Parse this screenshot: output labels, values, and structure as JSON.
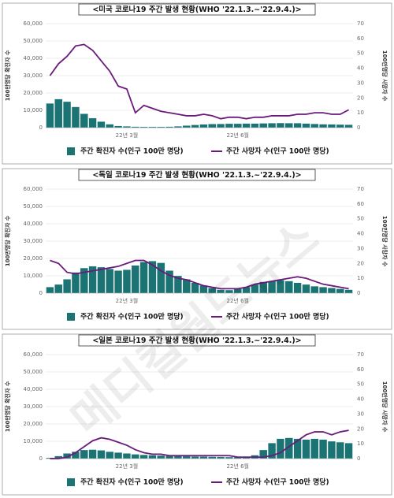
{
  "watermark": "메디컬월드뉴스",
  "chart_data": [
    {
      "type": "bar-line",
      "title": "<미국 코로나19 주간 발생 현황(WHO '22.1.3.~'22.9.4.)>",
      "y_label": "100만명당 확진자 수",
      "y2_label": "100만명당 사망자 수",
      "categories": [
        null,
        null,
        null,
        null,
        null,
        null,
        null,
        null,
        null,
        "22년 3월",
        null,
        null,
        null,
        null,
        null,
        null,
        null,
        null,
        null,
        null,
        null,
        null,
        "22년 6월",
        null,
        null,
        null,
        null,
        null,
        null,
        null,
        null,
        null,
        null,
        null,
        null,
        null
      ],
      "series": [
        {
          "name": "주간 확진자 수(인구 100만 명당)",
          "color": "#1b7373",
          "values": [
            14000,
            16500,
            15000,
            12000,
            8000,
            5500,
            3500,
            2000,
            1000,
            800,
            600,
            500,
            500,
            500,
            600,
            800,
            1200,
            1600,
            1900,
            2100,
            2200,
            2300,
            2300,
            2400,
            2400,
            2500,
            2600,
            2700,
            2600,
            2600,
            2400,
            2200,
            2000,
            1900,
            1800,
            1700
          ]
        },
        {
          "name": "주간 사망자 수(인구 100만 명당)",
          "color": "#6b1a7c",
          "axis": "y2",
          "values": [
            35,
            43,
            48,
            55,
            56,
            52,
            45,
            38,
            28,
            26,
            10,
            15,
            13,
            11,
            10,
            9,
            8,
            8,
            9,
            8,
            6,
            7,
            7,
            6,
            7,
            7,
            8,
            8,
            8,
            9,
            9,
            10,
            10,
            9,
            9,
            12
          ]
        }
      ],
      "ylim": [
        0,
        60000
      ],
      "yticks": [
        0,
        {
          "value": 10000,
          "label": "10,000"
        },
        {
          "value": 20000,
          "label": "20,000"
        },
        {
          "value": 30000,
          "label": "30,000"
        },
        {
          "value": 40000,
          "label": "40,000"
        },
        {
          "value": 50000,
          "label": "50,000"
        },
        {
          "value": 60000,
          "label": "60,000"
        }
      ],
      "y2lim": [
        0,
        70
      ],
      "y2ticks": [
        0,
        10,
        20,
        30,
        40,
        50,
        60,
        70
      ]
    },
    {
      "type": "bar-line",
      "title": "<독일 코로나19 주간 발생 현황(WHO '22.1.3.~'22.9.4.)>",
      "y_label": "100만명당 확진자 수",
      "y2_label": "100만명당 사망자 수",
      "categories": [
        null,
        null,
        null,
        null,
        null,
        null,
        null,
        null,
        null,
        "22년 3월",
        null,
        null,
        null,
        null,
        null,
        null,
        null,
        null,
        null,
        null,
        null,
        null,
        "22년 6월",
        null,
        null,
        null,
        null,
        null,
        null,
        null,
        null,
        null,
        null,
        null,
        null,
        null
      ],
      "series": [
        {
          "name": "주간 확진자 수(인구 100만 명당)",
          "color": "#1b7373",
          "values": [
            3500,
            5000,
            8000,
            12000,
            14500,
            15500,
            15000,
            14000,
            13000,
            13500,
            16000,
            18000,
            18500,
            17500,
            13000,
            10000,
            8000,
            6000,
            4500,
            3000,
            2000,
            1800,
            2500,
            3500,
            5000,
            6500,
            7000,
            7500,
            7000,
            6000,
            5000,
            4000,
            3500,
            3000,
            2500,
            2000
          ]
        },
        {
          "name": "주간 사망자 수(인구 100만 명당)",
          "color": "#6b1a7c",
          "axis": "y2",
          "values": [
            22,
            20,
            14,
            13,
            14,
            15,
            16,
            17,
            18,
            20,
            22,
            22,
            19,
            15,
            12,
            10,
            9,
            7,
            5,
            4,
            3,
            3,
            3,
            4,
            6,
            7,
            8,
            9,
            10,
            11,
            10,
            8,
            6,
            5,
            4,
            3
          ]
        }
      ],
      "ylim": [
        0,
        60000
      ],
      "yticks": [
        0,
        {
          "value": 10000,
          "label": "10,000"
        },
        {
          "value": 20000,
          "label": "20,000"
        },
        {
          "value": 30000,
          "label": "30,000"
        },
        {
          "value": 40000,
          "label": "40,000"
        },
        {
          "value": 50000,
          "label": "50,000"
        },
        {
          "value": 60000,
          "label": "60,000"
        }
      ],
      "y2lim": [
        0,
        70
      ],
      "y2ticks": [
        0,
        10,
        20,
        30,
        40,
        50,
        60,
        70
      ]
    },
    {
      "type": "bar-line",
      "title": "<일본 코로나19 주간 발생 현황(WHO '22.1.3.~'22.9.4.)>",
      "y_label": "100만명당 확진자 수",
      "y2_label": "100만명당 사망자 수",
      "categories": [
        null,
        null,
        null,
        null,
        null,
        null,
        null,
        null,
        null,
        "22년 3월",
        null,
        null,
        null,
        null,
        null,
        null,
        null,
        null,
        null,
        null,
        null,
        null,
        "22년 6월",
        null,
        null,
        null,
        null,
        null,
        null,
        null,
        null,
        null,
        null,
        null,
        null,
        null
      ],
      "series": [
        {
          "name": "주간 확진자 수(인구 100만 명당)",
          "color": "#1b7373",
          "values": [
            500,
            1500,
            3000,
            4000,
            5000,
            5200,
            4800,
            4000,
            3500,
            3000,
            2500,
            2200,
            2000,
            1800,
            1600,
            1500,
            1400,
            1300,
            1200,
            1100,
            1000,
            900,
            800,
            900,
            2000,
            5000,
            9000,
            11500,
            12000,
            11500,
            11000,
            11500,
            11000,
            10000,
            9500,
            9000
          ]
        },
        {
          "name": "주간 사망자 수(인구 100만 명당)",
          "color": "#6b1a7c",
          "axis": "y2",
          "values": [
            0,
            0,
            1,
            4,
            8,
            12,
            14,
            13,
            11,
            9,
            6,
            4,
            3,
            3,
            2,
            2,
            2,
            2,
            2,
            2,
            2,
            2,
            1,
            1,
            1,
            1,
            2,
            4,
            8,
            12,
            16,
            18,
            18,
            16,
            18,
            19
          ]
        }
      ],
      "ylim": [
        0,
        60000
      ],
      "yticks": [
        0,
        {
          "value": 10000,
          "label": "10,000"
        },
        {
          "value": 20000,
          "label": "20,000"
        },
        {
          "value": 30000,
          "label": "30,000"
        },
        {
          "value": 40000,
          "label": "40,000"
        },
        {
          "value": 50000,
          "label": "50,000"
        },
        {
          "value": 60000,
          "label": "60,000"
        }
      ],
      "y2lim": [
        0,
        70
      ],
      "y2ticks": [
        0,
        10,
        20,
        30,
        40,
        50,
        60,
        70
      ]
    }
  ]
}
